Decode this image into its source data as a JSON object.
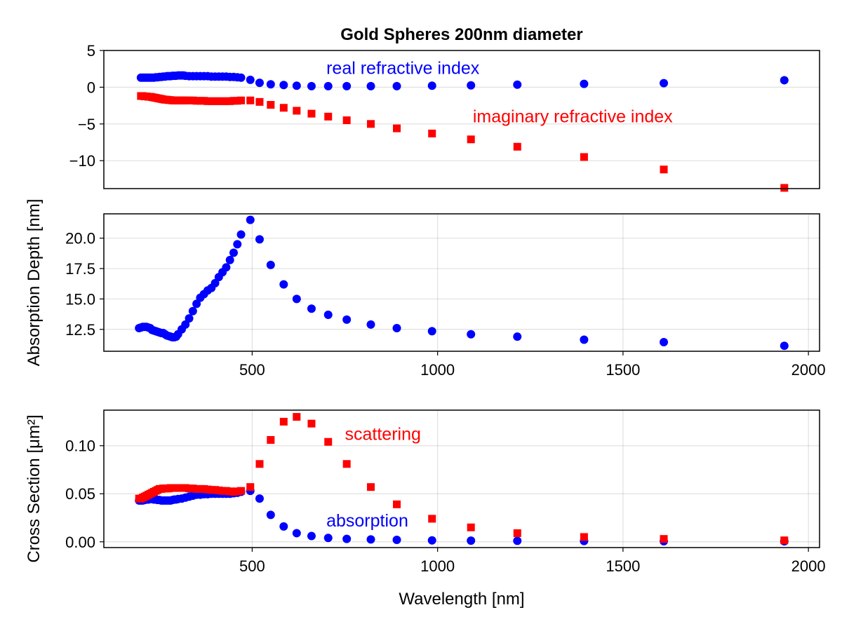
{
  "figure": {
    "title": "Gold Spheres 200nm diameter",
    "xlabel": "Wavelength [nm]"
  },
  "chart_data": [
    {
      "type": "scatter",
      "ylabel": "",
      "xlim": [
        100,
        2030
      ],
      "ylim": [
        -13.8,
        5
      ],
      "yticks": [
        5,
        0,
        -5,
        -10
      ],
      "ytick_labels": [
        "5",
        "0",
        "−5",
        "−10"
      ],
      "xticks": [],
      "grid": true,
      "annotations": [
        {
          "text": "real refractive index",
          "x": 700,
          "y": 1.8,
          "color": "#0000ff"
        },
        {
          "text": "imaginary refractive index",
          "x": 1095,
          "y": -4.8,
          "color": "#ff0000"
        }
      ],
      "series": [
        {
          "marker": "circle",
          "color": "#0000ff",
          "x": [
            200,
            205,
            210,
            215,
            220,
            225,
            230,
            235,
            240,
            245,
            250,
            255,
            260,
            265,
            270,
            275,
            280,
            285,
            290,
            295,
            300,
            305,
            310,
            315,
            320,
            330,
            340,
            350,
            360,
            370,
            380,
            390,
            400,
            410,
            420,
            430,
            440,
            450,
            460,
            470,
            495,
            520,
            550,
            585,
            620,
            660,
            705,
            755,
            820,
            890,
            985,
            1090,
            1215,
            1395,
            1610,
            1935
          ],
          "y": [
            1.3,
            1.3,
            1.3,
            1.3,
            1.3,
            1.3,
            1.3,
            1.3,
            1.35,
            1.35,
            1.4,
            1.4,
            1.45,
            1.45,
            1.5,
            1.5,
            1.5,
            1.55,
            1.55,
            1.55,
            1.6,
            1.6,
            1.6,
            1.6,
            1.55,
            1.5,
            1.5,
            1.5,
            1.5,
            1.5,
            1.5,
            1.45,
            1.45,
            1.45,
            1.45,
            1.45,
            1.4,
            1.4,
            1.35,
            1.3,
            1.0,
            0.6,
            0.4,
            0.3,
            0.2,
            0.15,
            0.15,
            0.15,
            0.15,
            0.15,
            0.2,
            0.25,
            0.35,
            0.45,
            0.55,
            0.95
          ]
        },
        {
          "marker": "square",
          "color": "#ff0000",
          "x": [
            200,
            205,
            210,
            215,
            220,
            225,
            230,
            235,
            240,
            245,
            250,
            255,
            260,
            265,
            270,
            275,
            280,
            285,
            290,
            295,
            300,
            305,
            310,
            315,
            320,
            330,
            340,
            350,
            360,
            370,
            380,
            390,
            400,
            410,
            420,
            430,
            440,
            450,
            460,
            470,
            495,
            520,
            550,
            585,
            620,
            660,
            705,
            755,
            820,
            890,
            985,
            1090,
            1215,
            1395,
            1610,
            1935
          ],
          "y": [
            -1.2,
            -1.2,
            -1.25,
            -1.25,
            -1.3,
            -1.3,
            -1.35,
            -1.4,
            -1.45,
            -1.5,
            -1.55,
            -1.6,
            -1.65,
            -1.7,
            -1.7,
            -1.75,
            -1.75,
            -1.8,
            -1.8,
            -1.8,
            -1.8,
            -1.8,
            -1.8,
            -1.8,
            -1.8,
            -1.8,
            -1.8,
            -1.85,
            -1.85,
            -1.85,
            -1.9,
            -1.9,
            -1.9,
            -1.9,
            -1.9,
            -1.9,
            -1.9,
            -1.85,
            -1.85,
            -1.8,
            -1.8,
            -2.0,
            -2.4,
            -2.8,
            -3.2,
            -3.6,
            -4.0,
            -4.5,
            -5.0,
            -5.6,
            -6.3,
            -7.1,
            -8.1,
            -9.5,
            -11.2,
            -13.7
          ]
        }
      ]
    },
    {
      "type": "scatter",
      "ylabel": "Absorption Depth [nm]",
      "xlim": [
        100,
        2030
      ],
      "ylim": [
        10.7,
        22
      ],
      "yticks": [
        20.0,
        17.5,
        15.0,
        12.5
      ],
      "ytick_labels": [
        "20.0",
        "17.5",
        "15.0",
        "12.5"
      ],
      "xticks": [
        500,
        1000,
        1500,
        2000
      ],
      "xtick_labels": [
        "500",
        "1000",
        "1500",
        "2000"
      ],
      "grid": true,
      "series": [
        {
          "marker": "circle",
          "color": "#0000ff",
          "x": [
            195,
            200,
            205,
            210,
            215,
            220,
            225,
            230,
            235,
            240,
            245,
            250,
            255,
            260,
            265,
            270,
            275,
            280,
            285,
            290,
            295,
            300,
            310,
            320,
            330,
            340,
            350,
            360,
            370,
            380,
            390,
            400,
            410,
            420,
            430,
            440,
            450,
            460,
            470,
            495,
            520,
            550,
            585,
            620,
            660,
            705,
            755,
            820,
            890,
            985,
            1090,
            1215,
            1395,
            1610,
            1935
          ],
          "y": [
            12.6,
            12.65,
            12.7,
            12.7,
            12.7,
            12.65,
            12.6,
            12.45,
            12.4,
            12.35,
            12.3,
            12.25,
            12.2,
            12.2,
            12.1,
            12.0,
            11.95,
            11.9,
            11.85,
            11.85,
            11.9,
            12.1,
            12.5,
            12.9,
            13.4,
            14.0,
            14.6,
            15.1,
            15.4,
            15.7,
            15.9,
            16.3,
            16.8,
            17.2,
            17.6,
            18.2,
            18.8,
            19.5,
            20.3,
            21.5,
            19.9,
            17.8,
            16.2,
            15.0,
            14.2,
            13.7,
            13.3,
            12.9,
            12.6,
            12.35,
            12.1,
            11.9,
            11.65,
            11.45,
            11.15
          ]
        }
      ]
    },
    {
      "type": "scatter",
      "ylabel": "Cross Section [μm²]",
      "xlim": [
        100,
        2030
      ],
      "ylim": [
        -0.006,
        0.137
      ],
      "yticks": [
        0.1,
        0.05,
        0.0
      ],
      "ytick_labels": [
        "0.10",
        "0.05",
        "0.00"
      ],
      "xticks": [
        500,
        1000,
        1500,
        2000
      ],
      "xtick_labels": [
        "500",
        "1000",
        "1500",
        "2000"
      ],
      "grid": true,
      "annotations": [
        {
          "text": "scattering",
          "x": 750,
          "y": 0.106,
          "color": "#ff0000"
        },
        {
          "text": "absorption",
          "x": 700,
          "y": 0.016,
          "color": "#0000ff"
        }
      ],
      "series": [
        {
          "marker": "circle",
          "color": "#0000ff",
          "x": [
            195,
            200,
            205,
            210,
            215,
            220,
            225,
            230,
            235,
            240,
            245,
            250,
            255,
            260,
            265,
            270,
            275,
            280,
            285,
            290,
            295,
            300,
            310,
            320,
            330,
            340,
            350,
            360,
            370,
            380,
            390,
            400,
            410,
            420,
            430,
            440,
            450,
            460,
            470,
            495,
            520,
            550,
            585,
            620,
            660,
            705,
            755,
            820,
            890,
            985,
            1090,
            1215,
            1395,
            1610,
            1935
          ],
          "y": [
            0.043,
            0.043,
            0.043,
            0.0435,
            0.044,
            0.044,
            0.0445,
            0.0445,
            0.044,
            0.044,
            0.0435,
            0.0435,
            0.043,
            0.043,
            0.043,
            0.043,
            0.043,
            0.043,
            0.0435,
            0.044,
            0.044,
            0.0445,
            0.045,
            0.046,
            0.047,
            0.048,
            0.049,
            0.049,
            0.0495,
            0.0495,
            0.05,
            0.05,
            0.05,
            0.05,
            0.05,
            0.05,
            0.0505,
            0.051,
            0.052,
            0.053,
            0.045,
            0.028,
            0.016,
            0.009,
            0.006,
            0.004,
            0.003,
            0.0025,
            0.002,
            0.0015,
            0.0012,
            0.001,
            0.0008,
            0.0006,
            0.0005
          ]
        },
        {
          "marker": "square",
          "color": "#ff0000",
          "x": [
            195,
            200,
            205,
            210,
            215,
            220,
            225,
            230,
            235,
            240,
            245,
            250,
            255,
            260,
            265,
            270,
            275,
            280,
            285,
            290,
            295,
            300,
            310,
            320,
            330,
            340,
            350,
            360,
            370,
            380,
            390,
            400,
            410,
            420,
            430,
            440,
            450,
            460,
            470,
            495,
            520,
            550,
            585,
            620,
            660,
            705,
            755,
            820,
            890,
            985,
            1090,
            1215,
            1395,
            1610,
            1935
          ],
          "y": [
            0.045,
            0.045,
            0.046,
            0.047,
            0.048,
            0.049,
            0.05,
            0.051,
            0.052,
            0.053,
            0.054,
            0.055,
            0.055,
            0.0555,
            0.0555,
            0.0555,
            0.0555,
            0.056,
            0.056,
            0.056,
            0.056,
            0.056,
            0.056,
            0.056,
            0.0555,
            0.0555,
            0.055,
            0.055,
            0.055,
            0.0545,
            0.054,
            0.054,
            0.0535,
            0.053,
            0.053,
            0.0525,
            0.052,
            0.0525,
            0.053,
            0.057,
            0.081,
            0.106,
            0.125,
            0.13,
            0.123,
            0.104,
            0.081,
            0.057,
            0.039,
            0.024,
            0.015,
            0.009,
            0.005,
            0.003,
            0.0015
          ]
        }
      ]
    }
  ]
}
